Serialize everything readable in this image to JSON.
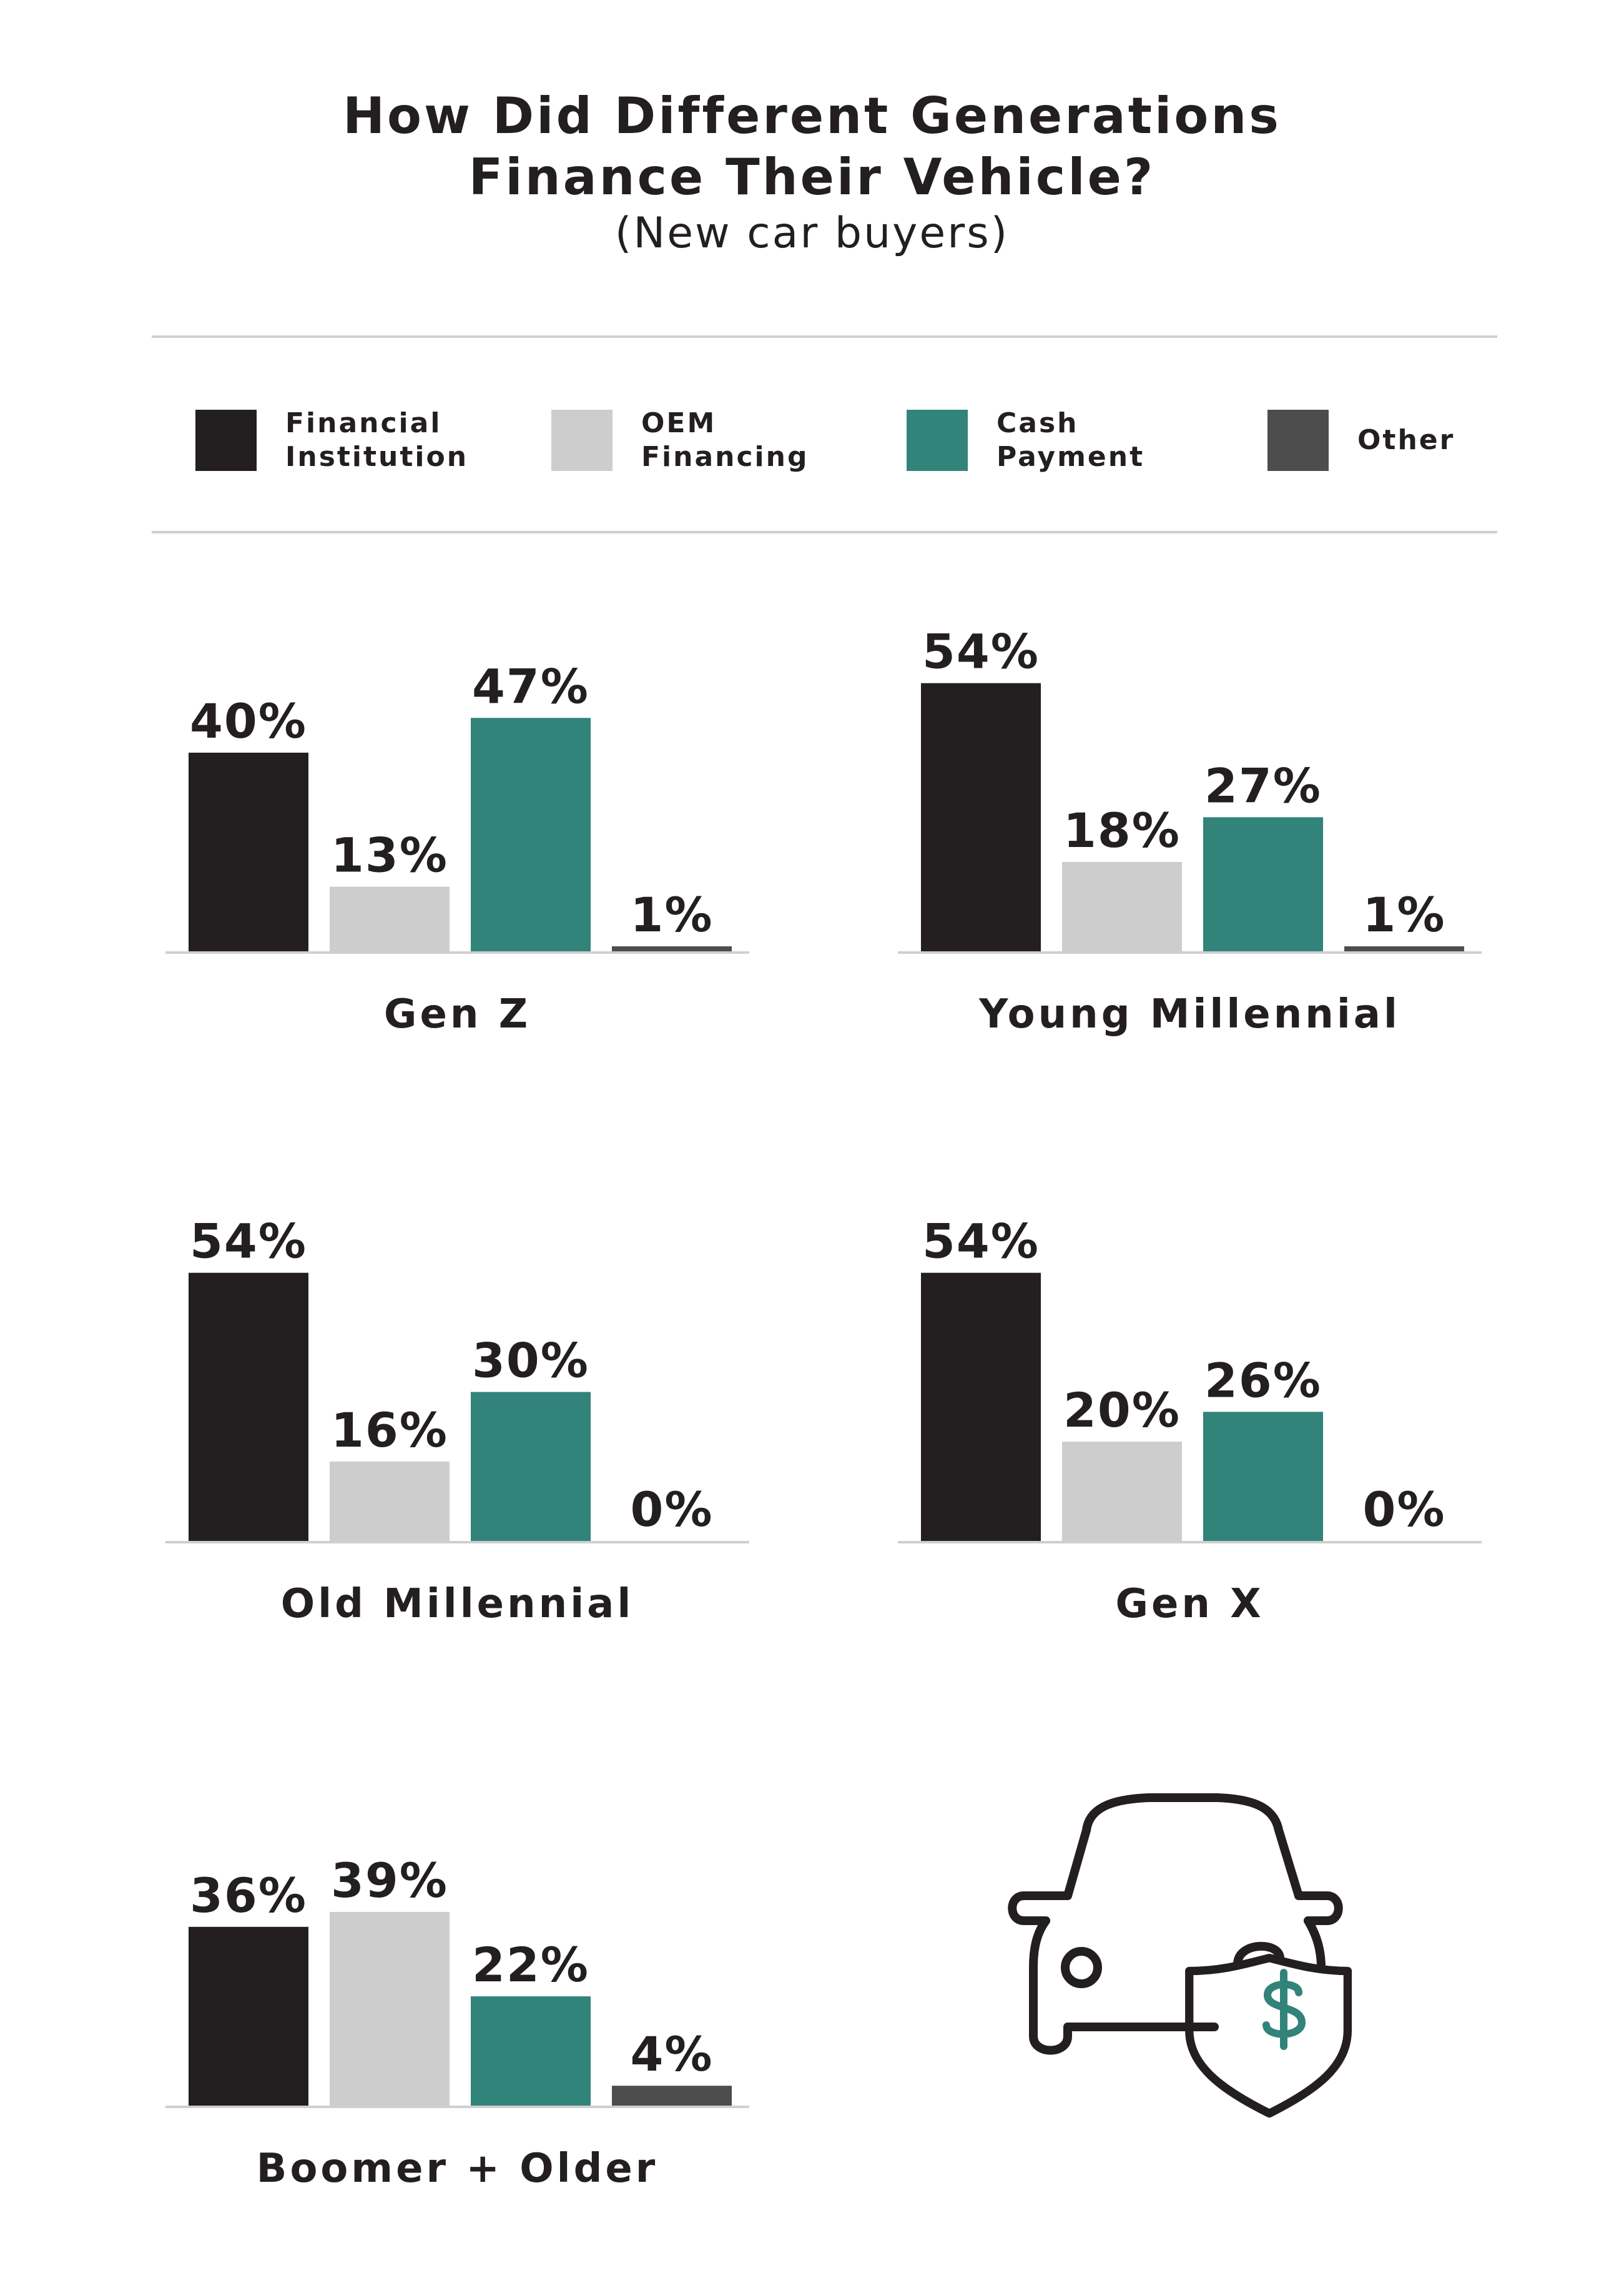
{
  "title_lines": [
    "How Did Different Generations",
    "Finance Their Vehicle?"
  ],
  "subtitle": "(New car buyers)",
  "colors": {
    "financial_institution": "#231f20",
    "oem_financing": "#cdcdcd",
    "cash_payment": "#32837a",
    "other": "#4d4d4d",
    "text": "#231f20",
    "rule": "#cfcfcf"
  },
  "legend": [
    {
      "label": "Financial\nInstitution",
      "color": "#231f20"
    },
    {
      "label": "OEM\nFinancing",
      "color": "#cdcdcd"
    },
    {
      "label": "Cash\nPayment",
      "color": "#32837a"
    },
    {
      "label": "Other",
      "color": "#4d4d4d"
    }
  ],
  "icon": "car-with-dollar-shield-icon",
  "chart_data": [
    {
      "type": "bar",
      "title": "Gen Z",
      "categories": [
        "Financial Institution",
        "OEM Financing",
        "Cash Payment",
        "Other"
      ],
      "values": [
        40,
        13,
        47,
        1
      ],
      "labels": [
        "40%",
        "13%",
        "47%",
        "1%"
      ],
      "ylim": [
        0,
        60
      ],
      "grid": false,
      "legend": "top"
    },
    {
      "type": "bar",
      "title": "Young Millennial",
      "categories": [
        "Financial Institution",
        "OEM Financing",
        "Cash Payment",
        "Other"
      ],
      "values": [
        54,
        18,
        27,
        1
      ],
      "labels": [
        "54%",
        "18%",
        "27%",
        "1%"
      ],
      "ylim": [
        0,
        60
      ],
      "grid": false,
      "legend": "top"
    },
    {
      "type": "bar",
      "title": "Old Millennial",
      "categories": [
        "Financial Institution",
        "OEM Financing",
        "Cash Payment",
        "Other"
      ],
      "values": [
        54,
        16,
        30,
        0
      ],
      "labels": [
        "54%",
        "16%",
        "30%",
        "0%"
      ],
      "ylim": [
        0,
        60
      ],
      "grid": false,
      "legend": "top"
    },
    {
      "type": "bar",
      "title": "Gen X",
      "categories": [
        "Financial Institution",
        "OEM Financing",
        "Cash Payment",
        "Other"
      ],
      "values": [
        54,
        20,
        26,
        0
      ],
      "labels": [
        "54%",
        "20%",
        "26%",
        "0%"
      ],
      "ylim": [
        0,
        60
      ],
      "grid": false,
      "legend": "top"
    },
    {
      "type": "bar",
      "title": "Boomer + Older",
      "categories": [
        "Financial Institution",
        "OEM Financing",
        "Cash Payment",
        "Other"
      ],
      "values": [
        36,
        39,
        22,
        4
      ],
      "labels": [
        "36%",
        "39%",
        "22%",
        "4%"
      ],
      "ylim": [
        0,
        60
      ],
      "grid": false,
      "legend": "top"
    }
  ]
}
